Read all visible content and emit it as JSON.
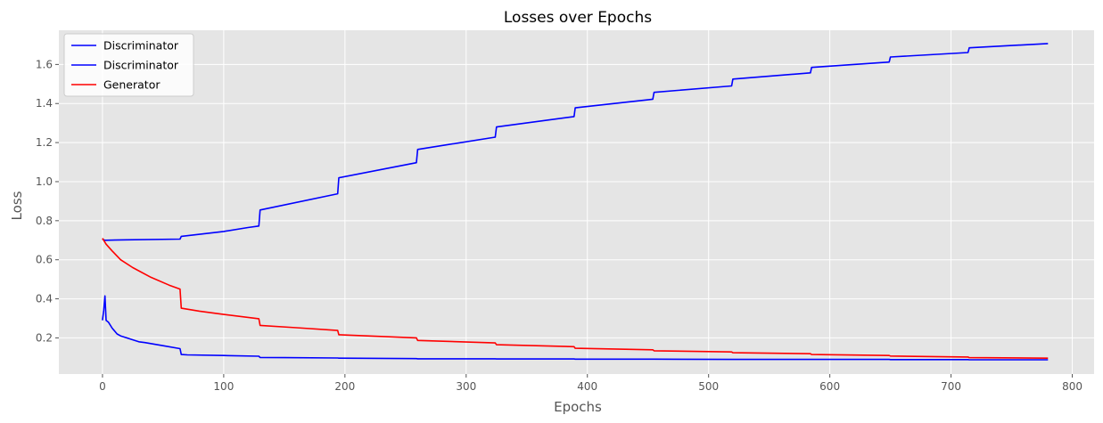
{
  "chart_data": {
    "type": "line",
    "title": "Losses over Epochs",
    "xlabel": "Epochs",
    "ylabel": "Loss",
    "xlim": [
      -36,
      818
    ],
    "ylim": [
      0.015,
      1.775
    ],
    "xticks": [
      0,
      100,
      200,
      300,
      400,
      500,
      600,
      700,
      800
    ],
    "yticks": [
      0.2,
      0.4,
      0.6,
      0.8,
      1.0,
      1.2,
      1.4,
      1.6
    ],
    "grid": true,
    "legend_position": "top-left",
    "series": [
      {
        "name": "Discriminator",
        "color": "#0000ff",
        "x": [
          0,
          1,
          2,
          3,
          5,
          8,
          12,
          15,
          20,
          30,
          35,
          50,
          64,
          65,
          70,
          100,
          129,
          130,
          150,
          194,
          195,
          259,
          260,
          324,
          325,
          389,
          390,
          454,
          455,
          519,
          520,
          584,
          585,
          649,
          650,
          714,
          715,
          780
        ],
        "y": [
          0.29,
          0.34,
          0.415,
          0.29,
          0.28,
          0.25,
          0.22,
          0.21,
          0.2,
          0.18,
          0.176,
          0.16,
          0.145,
          0.115,
          0.113,
          0.11,
          0.106,
          0.1,
          0.099,
          0.097,
          0.096,
          0.094,
          0.093,
          0.093,
          0.092,
          0.092,
          0.091,
          0.091,
          0.091,
          0.09,
          0.09,
          0.09,
          0.09,
          0.09,
          0.089,
          0.089,
          0.088,
          0.088
        ]
      },
      {
        "name": "Discriminator",
        "color": "#0000ff",
        "x": [
          0,
          2,
          20,
          64,
          65,
          100,
          120,
          129,
          130,
          194,
          195,
          259,
          260,
          324,
          325,
          389,
          390,
          454,
          455,
          519,
          520,
          584,
          585,
          649,
          650,
          714,
          715,
          780
        ],
        "y": [
          0.705,
          0.7,
          0.702,
          0.706,
          0.72,
          0.745,
          0.765,
          0.773,
          0.855,
          0.938,
          1.02,
          1.097,
          1.165,
          1.228,
          1.28,
          1.333,
          1.378,
          1.422,
          1.457,
          1.49,
          1.525,
          1.557,
          1.585,
          1.612,
          1.638,
          1.661,
          1.685,
          1.707
        ]
      },
      {
        "name": "Generator",
        "color": "#ff0000",
        "x": [
          0,
          3,
          8,
          15,
          25,
          40,
          55,
          64,
          65,
          80,
          100,
          129,
          130,
          160,
          194,
          195,
          259,
          260,
          324,
          325,
          389,
          390,
          454,
          455,
          519,
          520,
          584,
          585,
          649,
          650,
          714,
          715,
          780
        ],
        "y": [
          0.71,
          0.68,
          0.645,
          0.6,
          0.56,
          0.51,
          0.47,
          0.45,
          0.352,
          0.337,
          0.32,
          0.298,
          0.264,
          0.252,
          0.238,
          0.216,
          0.2,
          0.187,
          0.174,
          0.165,
          0.155,
          0.147,
          0.139,
          0.134,
          0.128,
          0.124,
          0.119,
          0.115,
          0.11,
          0.107,
          0.102,
          0.099,
          0.096
        ]
      }
    ]
  }
}
